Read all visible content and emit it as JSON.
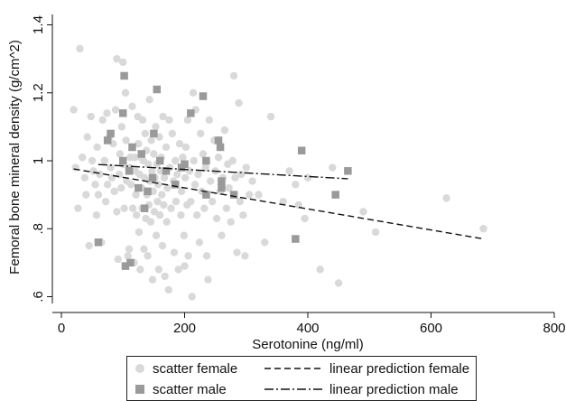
{
  "chart_data": {
    "type": "scatter",
    "xlabel": "Serotonine (ng/ml)",
    "ylabel": "Femoral bone mineral density (g/cm^2)",
    "xlim": [
      0,
      800
    ],
    "ylim": [
      0.58,
      1.42
    ],
    "x_ticks": [
      0,
      200,
      400,
      600,
      800
    ],
    "x_tick_labels": [
      "0",
      "200",
      "400",
      "600",
      "800"
    ],
    "y_ticks": [
      0.6,
      0.8,
      1.0,
      1.2,
      1.4
    ],
    "y_tick_labels": [
      ".6",
      ".8",
      "1",
      "1.2",
      "1.4"
    ],
    "grid": false,
    "legend_position": "bottom",
    "colors": {
      "female_marker": "#d9d9d9",
      "male_marker": "#9a9a9a",
      "line": "#111111"
    },
    "series": [
      {
        "name": "scatter female",
        "kind": "scatter",
        "marker": "circle",
        "points": [
          [
            20,
            1.15
          ],
          [
            23,
            0.98
          ],
          [
            27,
            0.86
          ],
          [
            30,
            1.33
          ],
          [
            34,
            1.01
          ],
          [
            38,
            0.95
          ],
          [
            40,
            0.9
          ],
          [
            42,
            1.07
          ],
          [
            45,
            0.75
          ],
          [
            48,
            1.13
          ],
          [
            50,
            1.0
          ],
          [
            52,
            0.97
          ],
          [
            55,
            0.93
          ],
          [
            57,
            0.84
          ],
          [
            58,
            1.04
          ],
          [
            60,
            0.9
          ],
          [
            62,
            0.96
          ],
          [
            65,
            0.76
          ],
          [
            67,
            1.12
          ],
          [
            70,
            1.0
          ],
          [
            72,
            0.88
          ],
          [
            74,
            1.14
          ],
          [
            75,
            0.93
          ],
          [
            78,
            1.07
          ],
          [
            80,
            0.98
          ],
          [
            82,
            0.95
          ],
          [
            84,
            1.05
          ],
          [
            86,
            0.91
          ],
          [
            88,
            1.15
          ],
          [
            90,
            0.85
          ],
          [
            90,
            1.3
          ],
          [
            92,
            0.71
          ],
          [
            94,
            0.96
          ],
          [
            95,
            1.02
          ],
          [
            97,
            0.92
          ],
          [
            98,
            1.1
          ],
          [
            100,
            1.29
          ],
          [
            100,
            0.99
          ],
          [
            102,
            0.86
          ],
          [
            104,
            1.2
          ],
          [
            105,
            1.06
          ],
          [
            106,
            0.94
          ],
          [
            108,
            0.72
          ],
          [
            110,
            0.74
          ],
          [
            111,
            0.98
          ],
          [
            112,
            1.01
          ],
          [
            113,
            0.93
          ],
          [
            115,
            1.16
          ],
          [
            116,
            0.86
          ],
          [
            118,
            0.7
          ],
          [
            119,
            1.01
          ],
          [
            120,
            0.97
          ],
          [
            121,
            0.9
          ],
          [
            122,
            0.84
          ],
          [
            124,
            1.13
          ],
          [
            125,
            1.05
          ],
          [
            126,
            0.79
          ],
          [
            127,
            0.96
          ],
          [
            128,
            0.68
          ],
          [
            129,
            1.01
          ],
          [
            130,
            0.92
          ],
          [
            131,
            0.86
          ],
          [
            132,
            1.12
          ],
          [
            133,
            1.0
          ],
          [
            134,
            0.74
          ],
          [
            135,
            0.95
          ],
          [
            136,
            1.08
          ],
          [
            137,
            0.83
          ],
          [
            138,
            1.03
          ],
          [
            139,
            0.9
          ],
          [
            140,
            0.72
          ],
          [
            141,
            0.99
          ],
          [
            142,
            0.87
          ],
          [
            143,
            1.18
          ],
          [
            144,
            0.94
          ],
          [
            145,
            0.82
          ],
          [
            146,
            1.06
          ],
          [
            147,
            0.97
          ],
          [
            148,
            0.65
          ],
          [
            149,
            0.91
          ],
          [
            150,
            1.02
          ],
          [
            151,
            0.85
          ],
          [
            152,
            0.95
          ],
          [
            153,
            1.1
          ],
          [
            154,
            0.78
          ],
          [
            155,
            0.99
          ],
          [
            156,
            0.88
          ],
          [
            157,
            0.93
          ],
          [
            158,
            0.68
          ],
          [
            159,
            1.07
          ],
          [
            160,
            0.84
          ],
          [
            161,
            0.97
          ],
          [
            162,
            1.01
          ],
          [
            163,
            0.9
          ],
          [
            164,
            0.75
          ],
          [
            165,
            1.13
          ],
          [
            166,
            0.87
          ],
          [
            167,
            0.95
          ],
          [
            168,
            0.66
          ],
          [
            170,
            1.04
          ],
          [
            171,
            0.82
          ],
          [
            172,
            0.92
          ],
          [
            174,
            0.62
          ],
          [
            175,
            1.12
          ],
          [
            176,
            0.98
          ],
          [
            178,
            0.86
          ],
          [
            180,
            1.08
          ],
          [
            182,
            0.94
          ],
          [
            183,
            0.73
          ],
          [
            185,
            1.0
          ],
          [
            186,
            0.88
          ],
          [
            188,
            0.96
          ],
          [
            190,
            0.68
          ],
          [
            192,
            1.05
          ],
          [
            194,
            0.84
          ],
          [
            195,
            0.91
          ],
          [
            197,
            1.01
          ],
          [
            199,
            0.78
          ],
          [
            200,
            0.69
          ],
          [
            201,
            0.95
          ],
          [
            202,
            1.04
          ],
          [
            204,
            0.87
          ],
          [
            205,
            1.12
          ],
          [
            206,
            0.72
          ],
          [
            208,
            0.97
          ],
          [
            210,
            0.88
          ],
          [
            212,
            0.6
          ],
          [
            214,
            1.2
          ],
          [
            215,
            1.0
          ],
          [
            217,
            0.93
          ],
          [
            218,
            1.15
          ],
          [
            220,
            0.84
          ],
          [
            222,
            0.96
          ],
          [
            224,
            0.76
          ],
          [
            226,
            1.08
          ],
          [
            228,
            0.91
          ],
          [
            230,
            1.02
          ],
          [
            232,
            0.86
          ],
          [
            234,
            0.98
          ],
          [
            236,
            0.72
          ],
          [
            238,
            0.65
          ],
          [
            240,
            1.12
          ],
          [
            242,
            0.94
          ],
          [
            245,
            0.88
          ],
          [
            248,
            1.06
          ],
          [
            250,
            0.97
          ],
          [
            252,
            0.83
          ],
          [
            255,
            1.01
          ],
          [
            258,
            0.91
          ],
          [
            260,
            0.78
          ],
          [
            262,
            0.95
          ],
          [
            265,
            1.09
          ],
          [
            268,
            0.86
          ],
          [
            270,
            0.99
          ],
          [
            272,
            0.92
          ],
          [
            275,
            0.82
          ],
          [
            278,
            1.0
          ],
          [
            280,
            1.25
          ],
          [
            282,
            0.95
          ],
          [
            285,
            0.73
          ],
          [
            288,
            1.17
          ],
          [
            290,
            0.88
          ],
          [
            292,
            0.96
          ],
          [
            295,
            0.84
          ],
          [
            298,
            0.72
          ],
          [
            300,
            0.98
          ],
          [
            305,
            0.9
          ],
          [
            310,
            0.94
          ],
          [
            320,
            0.9
          ],
          [
            330,
            0.76
          ],
          [
            340,
            1.13
          ],
          [
            360,
            0.88
          ],
          [
            370,
            0.97
          ],
          [
            380,
            0.93
          ],
          [
            385,
            0.87
          ],
          [
            395,
            0.83
          ],
          [
            400,
            0.95
          ],
          [
            420,
            0.68
          ],
          [
            440,
            0.98
          ],
          [
            450,
            0.64
          ],
          [
            490,
            0.85
          ],
          [
            510,
            0.79
          ],
          [
            625,
            0.89
          ],
          [
            685,
            0.8
          ]
        ]
      },
      {
        "name": "scatter male",
        "kind": "scatter",
        "marker": "square",
        "points": [
          [
            60,
            0.76
          ],
          [
            75,
            1.06
          ],
          [
            80,
            1.08
          ],
          [
            100,
            1.14
          ],
          [
            100,
            1.0
          ],
          [
            102,
            1.25
          ],
          [
            104,
            0.69
          ],
          [
            110,
            0.97
          ],
          [
            112,
            0.7
          ],
          [
            115,
            1.04
          ],
          [
            125,
            0.92
          ],
          [
            130,
            1.02
          ],
          [
            135,
            0.86
          ],
          [
            140,
            0.91
          ],
          [
            148,
            0.95
          ],
          [
            150,
            1.08
          ],
          [
            155,
            1.21
          ],
          [
            160,
            1.0
          ],
          [
            170,
            0.97
          ],
          [
            185,
            0.93
          ],
          [
            195,
            0.98
          ],
          [
            200,
            0.99
          ],
          [
            210,
            1.14
          ],
          [
            230,
            1.19
          ],
          [
            235,
            0.9
          ],
          [
            235,
            1.0
          ],
          [
            255,
            1.06
          ],
          [
            258,
            1.04
          ],
          [
            260,
            0.92
          ],
          [
            260,
            0.94
          ],
          [
            280,
            0.9
          ],
          [
            380,
            0.77
          ],
          [
            390,
            1.03
          ],
          [
            445,
            0.9
          ],
          [
            465,
            0.97
          ]
        ]
      },
      {
        "name": "linear prediction female",
        "kind": "line",
        "style": "dashed",
        "points": [
          [
            20,
            0.976
          ],
          [
            685,
            0.77
          ]
        ]
      },
      {
        "name": "linear prediction male",
        "kind": "line",
        "style": "dashdot",
        "points": [
          [
            60,
            0.989
          ],
          [
            465,
            0.947
          ]
        ]
      }
    ]
  }
}
